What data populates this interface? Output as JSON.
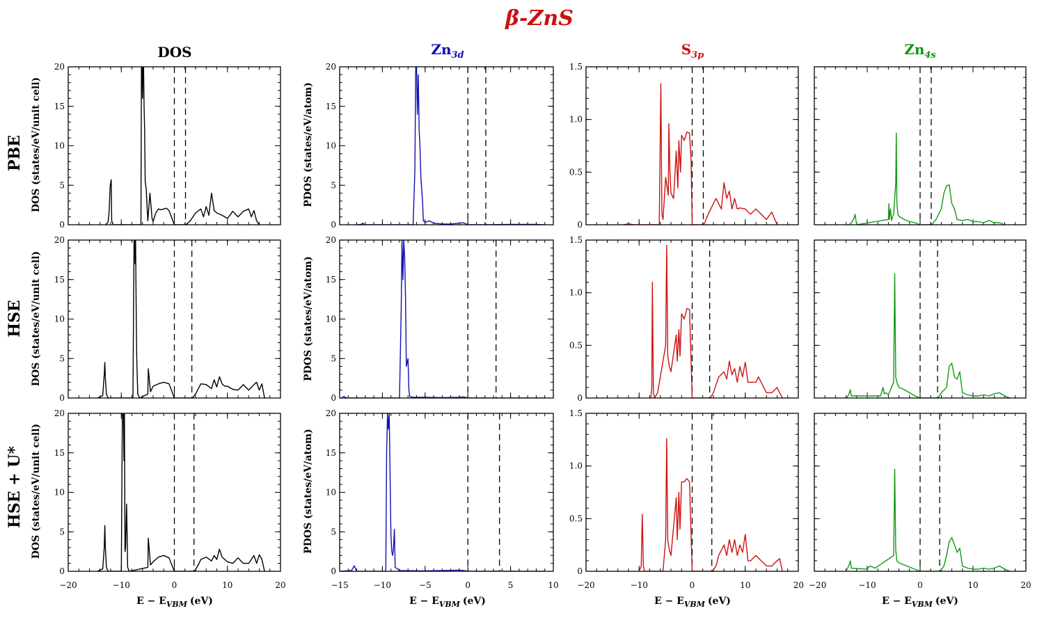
{
  "title": "β-ZnS",
  "title_color": "#cc1111",
  "columns": [
    {
      "id": "dos",
      "base": "DOS",
      "sub": "",
      "color": "#000000",
      "ylabel": "DOS (states/eV/unit cell)"
    },
    {
      "id": "zn3d",
      "base": "Zn",
      "sub": "3d",
      "color": "#1010b0",
      "ylabel": "PDOS (states/eV/atom)"
    },
    {
      "id": "s3p",
      "base": "S",
      "sub": "3p",
      "color": "#cc1111",
      "ylabel": ""
    },
    {
      "id": "zn4s",
      "base": "Zn",
      "sub": "4s",
      "color": "#119911",
      "ylabel": ""
    }
  ],
  "rows": [
    {
      "id": "pbe",
      "label": "PBE"
    },
    {
      "id": "hse",
      "label": "HSE"
    },
    {
      "id": "hseu",
      "label": "HSE + U*"
    }
  ],
  "xlabel": {
    "main": "E − E",
    "sub": "VBM",
    "unit": "(eV)"
  },
  "chart_data": [
    {
      "type": "line",
      "panel": "DOS / PBE",
      "color": "#000000",
      "xlim": [
        -20,
        20
      ],
      "ylim": [
        0,
        20
      ],
      "yticks": [
        "0",
        "5",
        "10",
        "15",
        "20"
      ],
      "xticks": [
        "−20",
        "−10",
        "0",
        "10",
        "20"
      ],
      "vlines": [
        0,
        2.1
      ],
      "x": [
        -13,
        -12.5,
        -12.3,
        -12.1,
        -11.9,
        -11.8,
        -11.5,
        -6.3,
        -6.2,
        -6.1,
        -6.0,
        -5.9,
        -5.8,
        -5.7,
        -5.6,
        -5.5,
        -5.3,
        -5.0,
        -4.6,
        -4.2,
        -4.0,
        -3.5,
        -3.0,
        -2.5,
        -1.5,
        -1.0,
        0.0,
        2.2,
        3.0,
        4.0,
        5.0,
        5.5,
        6.0,
        6.5,
        7.0,
        7.5,
        8.0,
        9.0,
        10.0,
        11.0,
        12.0,
        13.0,
        14.0,
        14.5,
        15.0,
        15.5,
        16.0
      ],
      "y": [
        0,
        0.3,
        1.5,
        4.8,
        5.7,
        0.5,
        0,
        0,
        20,
        20,
        16,
        20,
        20,
        15,
        12,
        5.5,
        4.5,
        0.5,
        4.0,
        0.8,
        0.4,
        1.5,
        2.0,
        1.9,
        2.1,
        1.8,
        0,
        0,
        0.5,
        1.5,
        2.0,
        1.0,
        2.3,
        1.2,
        4.0,
        1.8,
        1.5,
        1.2,
        0.8,
        1.7,
        1.0,
        1.7,
        2.0,
        1.0,
        1.8,
        0.5,
        0
      ]
    },
    {
      "type": "line",
      "panel": "Zn3d / PBE",
      "color": "#1010b0",
      "xlim": [
        -15,
        10
      ],
      "ylim": [
        0,
        20
      ],
      "yticks": [
        "0",
        "5",
        "10",
        "15",
        "20"
      ],
      "xticks": [
        "−15",
        "−10",
        "−5",
        "0",
        "5",
        "10"
      ],
      "vlines": [
        0,
        2.1
      ],
      "x": [
        -13,
        -12.5,
        -12.3,
        -12.2,
        -12.0,
        -6.4,
        -6.2,
        -6.1,
        -6.0,
        -5.9,
        -5.8,
        -5.7,
        -5.6,
        -5.5,
        -5.4,
        -5.3,
        -5.2,
        -5.0,
        -4.5,
        -4.0,
        -3.0,
        -2.0,
        -1.0,
        -0.5,
        0.0,
        2.2,
        5.0,
        8.0,
        9.0
      ],
      "y": [
        0,
        0.05,
        0.2,
        0.1,
        0,
        0,
        7,
        20,
        20,
        14,
        19,
        12,
        10,
        6,
        4.5,
        3.0,
        0.5,
        0.3,
        0.5,
        0.2,
        0.1,
        0.1,
        0.2,
        0.25,
        0,
        0,
        0.05,
        0.05,
        0
      ]
    },
    {
      "type": "line",
      "panel": "S3p / PBE",
      "color": "#cc1111",
      "xlim": [
        -20,
        20
      ],
      "ylim": [
        0,
        1.5
      ],
      "yticks": [
        "0",
        "0.5",
        "1.0",
        "1.5"
      ],
      "xticks": [
        "−20",
        "−10",
        "0",
        "10",
        "20"
      ],
      "vlines": [
        0,
        2.1
      ],
      "x": [
        -13,
        -12,
        -11,
        -6.2,
        -5.9,
        -5.7,
        -5.5,
        -5.0,
        -4.5,
        -4.4,
        -4.2,
        -4.0,
        -3.5,
        -3.0,
        -2.7,
        -2.5,
        -2.2,
        -2.0,
        -1.5,
        -1.0,
        -0.5,
        -0.2,
        0.0,
        2.2,
        3.0,
        4.0,
        4.5,
        5.0,
        5.5,
        6.0,
        6.5,
        7.0,
        7.5,
        8.0,
        8.5,
        9.0,
        10.0,
        11.0,
        12.0,
        13.0,
        14.0,
        15.0,
        16.0
      ],
      "y": [
        0,
        0.01,
        0,
        0,
        1.34,
        0.1,
        0.05,
        0.45,
        0.28,
        0.96,
        0.52,
        0.3,
        0.25,
        0.7,
        0.35,
        0.8,
        0.5,
        0.85,
        0.8,
        0.88,
        0.87,
        0.6,
        0,
        0,
        0.1,
        0.2,
        0.25,
        0.2,
        0.15,
        0.4,
        0.25,
        0.32,
        0.15,
        0.25,
        0.15,
        0.16,
        0.15,
        0.1,
        0.15,
        0.1,
        0.05,
        0.12,
        0
      ]
    },
    {
      "type": "line",
      "panel": "Zn4s / PBE",
      "color": "#119911",
      "xlim": [
        -20,
        20
      ],
      "ylim": [
        0,
        1.5
      ],
      "yticks": [],
      "xticks": [],
      "vlines": [
        0,
        2.1
      ],
      "x": [
        -13.5,
        -13,
        -12.5,
        -12.3,
        -12,
        -6.0,
        -5.9,
        -5.8,
        -5.6,
        -5.4,
        -5.2,
        -5.0,
        -4.6,
        -4.5,
        -4.4,
        -4.2,
        -4.0,
        -3.0,
        -2.0,
        -1.0,
        0.0,
        2.2,
        3.0,
        4.0,
        4.5,
        5.0,
        5.5,
        6.0,
        6.5,
        7.0,
        8.0,
        9.0,
        10.0,
        11.0,
        12.0,
        13.0,
        14.0,
        15.0,
        16.0
      ],
      "y": [
        0,
        0.02,
        0.06,
        0.1,
        0,
        0.05,
        0.2,
        0.05,
        0.15,
        0.04,
        0.08,
        0.1,
        0.4,
        0.87,
        0.2,
        0.1,
        0.08,
        0.05,
        0.03,
        0.02,
        0,
        0,
        0.05,
        0.15,
        0.3,
        0.37,
        0.38,
        0.2,
        0.15,
        0.05,
        0.04,
        0.05,
        0.03,
        0.03,
        0.02,
        0.04,
        0.02,
        0.02,
        0
      ]
    },
    {
      "type": "line",
      "panel": "DOS / HSE",
      "color": "#000000",
      "xlim": [
        -20,
        20
      ],
      "ylim": [
        0,
        20
      ],
      "yticks": [
        "0",
        "5",
        "10",
        "15",
        "20"
      ],
      "xticks": [
        "−20",
        "−10",
        "0",
        "10",
        "20"
      ],
      "vlines": [
        0,
        3.3
      ],
      "x": [
        -14.5,
        -13.5,
        -13.2,
        -13.1,
        -13.0,
        -12.8,
        -12.5,
        -7.8,
        -7.6,
        -7.5,
        -7.4,
        -7.3,
        -7.2,
        -7.1,
        -7.0,
        -6.9,
        -6.5,
        -5.0,
        -4.9,
        -4.5,
        -4.0,
        -3.0,
        -2.0,
        -1.0,
        0.0,
        3.4,
        4.0,
        5.0,
        6.0,
        7.0,
        7.5,
        8.0,
        8.5,
        9.0,
        9.5,
        10.0,
        11.0,
        12.0,
        13.0,
        14.0,
        15.0,
        15.5,
        16.0,
        16.5,
        17.0
      ],
      "y": [
        0,
        0.3,
        3.0,
        4.5,
        2.5,
        0.5,
        0,
        0,
        20,
        20,
        17,
        20,
        12,
        5.3,
        3.0,
        0.5,
        0,
        0.5,
        3.7,
        0.8,
        1.5,
        1.8,
        2.0,
        1.8,
        0,
        0,
        0.5,
        1.8,
        1.7,
        1.2,
        2.3,
        1.4,
        2.7,
        1.8,
        1.5,
        1.5,
        1.1,
        1.0,
        1.7,
        1.0,
        1.7,
        2.0,
        1.0,
        1.8,
        0
      ]
    },
    {
      "type": "line",
      "panel": "Zn3d / HSE",
      "color": "#1010b0",
      "xlim": [
        -15,
        10
      ],
      "ylim": [
        0,
        20
      ],
      "yticks": [
        "0",
        "5",
        "10",
        "15",
        "20"
      ],
      "xticks": [
        "−15",
        "−10",
        "−5",
        "0",
        "5",
        "10"
      ],
      "vlines": [
        0,
        3.3
      ],
      "x": [
        -14.8,
        -14.5,
        -14.2,
        -8.0,
        -7.8,
        -7.7,
        -7.6,
        -7.5,
        -7.4,
        -7.3,
        -7.2,
        -7.1,
        -7.0,
        -6.9,
        -6.8,
        -6.5,
        -5.0,
        -3.0,
        -1.0,
        -0.5,
        0.0,
        3.4,
        9.0
      ],
      "y": [
        0,
        0.2,
        0,
        0,
        11,
        20,
        15,
        20,
        18,
        13,
        4,
        4.5,
        5.0,
        1.0,
        0.2,
        0.1,
        0.1,
        0.05,
        0.1,
        0.15,
        0,
        0,
        0
      ]
    },
    {
      "type": "line",
      "panel": "S3p / HSE",
      "color": "#cc1111",
      "xlim": [
        -20,
        20
      ],
      "ylim": [
        0,
        1.5
      ],
      "yticks": [
        "0",
        "0.5",
        "1.0",
        "1.5"
      ],
      "xticks": [
        "−20",
        "−10",
        "0",
        "10",
        "20"
      ],
      "vlines": [
        0,
        3.3
      ],
      "x": [
        -7.8,
        -7.6,
        -7.5,
        -7.3,
        -7.1,
        -6.5,
        -5.0,
        -4.8,
        -4.6,
        -4.3,
        -4.0,
        -3.0,
        -2.8,
        -2.5,
        -2.3,
        -2.0,
        -1.5,
        -1.0,
        -0.5,
        0.0,
        3.4,
        4.0,
        5.0,
        6.0,
        6.5,
        7.0,
        7.5,
        8.0,
        8.5,
        9.0,
        9.5,
        10.0,
        10.5,
        11.0,
        12.0,
        12.5,
        13.0,
        14.0,
        15.0,
        16.0,
        16.5,
        17.0
      ],
      "y": [
        0,
        0.1,
        1.1,
        0.05,
        0,
        0.05,
        0.5,
        1.45,
        0.4,
        0.3,
        0.25,
        0.6,
        0.35,
        0.65,
        0.4,
        0.8,
        0.75,
        0.85,
        0.84,
        0,
        0,
        0.05,
        0.2,
        0.25,
        0.18,
        0.35,
        0.22,
        0.28,
        0.15,
        0.3,
        0.2,
        0.34,
        0.15,
        0.15,
        0.15,
        0.2,
        0.15,
        0.05,
        0.05,
        0.1,
        0.05,
        0
      ]
    },
    {
      "type": "line",
      "panel": "Zn4s / HSE",
      "color": "#119911",
      "xlim": [
        -20,
        20
      ],
      "ylim": [
        0,
        1.5
      ],
      "yticks": [],
      "xticks": [],
      "vlines": [
        0,
        3.3
      ],
      "x": [
        -14,
        -13.5,
        -13.2,
        -13.0,
        -7.5,
        -7.0,
        -6.8,
        -6.5,
        -6.0,
        -5.0,
        -4.8,
        -4.6,
        -4.4,
        -4.0,
        -3.0,
        -2.0,
        -1.0,
        0.0,
        3.4,
        4.0,
        5.0,
        5.5,
        6.0,
        6.5,
        7.0,
        7.5,
        8.0,
        9.0,
        10.0,
        11.0,
        12.0,
        13.0,
        14.0,
        15.0,
        16.0,
        17.0
      ],
      "y": [
        0,
        0.03,
        0.08,
        0.02,
        0.02,
        0.1,
        0.04,
        0.05,
        0.03,
        0.15,
        1.18,
        0.2,
        0.15,
        0.1,
        0.08,
        0.05,
        0.02,
        0,
        0,
        0.05,
        0.1,
        0.3,
        0.33,
        0.2,
        0.18,
        0.25,
        0.05,
        0.03,
        0.02,
        0.02,
        0.03,
        0.02,
        0.04,
        0.05,
        0.02,
        0
      ]
    },
    {
      "type": "line",
      "panel": "DOS / HSE + U*",
      "color": "#000000",
      "xlim": [
        -20,
        20
      ],
      "ylim": [
        0,
        20
      ],
      "yticks": [
        "0",
        "5",
        "10",
        "15",
        "20"
      ],
      "xticks": [
        "−20",
        "−10",
        "0",
        "10",
        "20"
      ],
      "vlines": [
        0,
        3.7
      ],
      "x": [
        -14.5,
        -13.5,
        -13.2,
        -13.1,
        -13.0,
        -12.8,
        -12.5,
        -10.0,
        -9.8,
        -9.6,
        -9.5,
        -9.4,
        -9.3,
        -9.2,
        -9.0,
        -8.9,
        -8.8,
        -8.5,
        -5.0,
        -4.9,
        -4.5,
        -4.0,
        -3.0,
        -2.0,
        -1.0,
        0.0,
        3.8,
        4.5,
        5.0,
        6.0,
        7.0,
        7.5,
        8.0,
        8.5,
        9.0,
        10.0,
        11.0,
        12.0,
        13.0,
        14.0,
        15.0,
        15.5,
        16.0,
        16.5,
        17.0
      ],
      "y": [
        0,
        0.3,
        3.0,
        5.8,
        3.0,
        0.5,
        0,
        0,
        20,
        20,
        14,
        20,
        2.5,
        3.0,
        8.5,
        5.0,
        0.5,
        0,
        0.5,
        4.2,
        0.8,
        1.2,
        1.8,
        2.0,
        1.7,
        0,
        0,
        0.8,
        1.5,
        1.8,
        1.3,
        2.0,
        1.5,
        2.8,
        1.8,
        1.2,
        1.0,
        1.7,
        1.0,
        1.0,
        2.0,
        1.0,
        2.1,
        1.5,
        0
      ]
    },
    {
      "type": "line",
      "panel": "Zn3d / HSE + U*",
      "color": "#1010b0",
      "xlim": [
        -15,
        10
      ],
      "ylim": [
        0,
        20
      ],
      "yticks": [
        "0",
        "5",
        "10",
        "15",
        "20"
      ],
      "xticks": [
        "−15",
        "−10",
        "−5",
        "0",
        "5",
        "10"
      ],
      "vlines": [
        0,
        3.7
      ],
      "x": [
        -15,
        -13.6,
        -13.3,
        -13.0,
        -9.6,
        -9.5,
        -9.4,
        -9.3,
        -9.2,
        -9.1,
        -9.0,
        -8.9,
        -8.8,
        -8.7,
        -8.6,
        -8.5,
        -8.0,
        -5.0,
        -3.0,
        -1.0,
        -0.5,
        0.0,
        3.8,
        9.0
      ],
      "y": [
        0,
        0.1,
        0.7,
        0,
        0,
        15,
        20,
        18,
        20,
        12,
        4.5,
        2.5,
        2.0,
        3.0,
        5.3,
        0.5,
        0.1,
        0.05,
        0.1,
        0.15,
        0.1,
        0,
        0,
        0
      ]
    },
    {
      "type": "line",
      "panel": "S3p / HSE + U*",
      "color": "#cc1111",
      "xlim": [
        -20,
        20
      ],
      "ylim": [
        0,
        1.5
      ],
      "yticks": [
        "0",
        "0.5",
        "1.0",
        "1.5"
      ],
      "xticks": [
        "−20",
        "−10",
        "0",
        "10",
        "20"
      ],
      "vlines": [
        0,
        3.7
      ],
      "x": [
        -10.0,
        -9.6,
        -9.4,
        -9.2,
        -9.0,
        -5.5,
        -5.0,
        -4.8,
        -4.6,
        -4.3,
        -4.0,
        -3.0,
        -2.8,
        -2.5,
        -2.3,
        -2.0,
        -1.5,
        -1.0,
        -0.5,
        0.0,
        3.8,
        4.5,
        5.0,
        6.0,
        6.5,
        7.0,
        7.5,
        8.0,
        8.5,
        9.0,
        9.5,
        10.0,
        10.5,
        11.0,
        12.0,
        13.0,
        14.0,
        15.0,
        16.0,
        16.5,
        17.0
      ],
      "y": [
        0,
        0.05,
        0.54,
        0.05,
        0,
        0,
        0.3,
        1.26,
        0.3,
        0.2,
        0.15,
        0.7,
        0.3,
        0.75,
        0.4,
        0.85,
        0.85,
        0.88,
        0.85,
        0,
        0,
        0.05,
        0.15,
        0.25,
        0.15,
        0.3,
        0.18,
        0.3,
        0.15,
        0.25,
        0.18,
        0.35,
        0.1,
        0.1,
        0.15,
        0.1,
        0.05,
        0.05,
        0.1,
        0.12,
        0
      ]
    },
    {
      "type": "line",
      "panel": "Zn4s / HSE + U*",
      "color": "#119911",
      "xlim": [
        -20,
        20
      ],
      "ylim": [
        0,
        1.5
      ],
      "yticks": [],
      "xticks": [
        "−20",
        "−10",
        "0",
        "10",
        "20"
      ],
      "vlines": [
        0,
        3.7
      ],
      "x": [
        -14,
        -13.5,
        -13.2,
        -13.0,
        -10.0,
        -9.5,
        -9.0,
        -8.5,
        -5.0,
        -4.8,
        -4.6,
        -4.4,
        -4.0,
        -3.0,
        -2.0,
        -1.0,
        0.0,
        3.8,
        4.5,
        5.0,
        5.5,
        6.0,
        6.5,
        7.0,
        7.5,
        8.0,
        9.0,
        10.0,
        11.0,
        12.0,
        13.0,
        14.0,
        15.0,
        16.0,
        17.0
      ],
      "y": [
        0,
        0.05,
        0.1,
        0.03,
        0.02,
        0.05,
        0.04,
        0.03,
        0.15,
        0.97,
        0.2,
        0.1,
        0.08,
        0.06,
        0.04,
        0.02,
        0,
        0,
        0.05,
        0.15,
        0.28,
        0.32,
        0.25,
        0.18,
        0.22,
        0.05,
        0.03,
        0.02,
        0.02,
        0.03,
        0.02,
        0.03,
        0.05,
        0.02,
        0
      ]
    }
  ]
}
